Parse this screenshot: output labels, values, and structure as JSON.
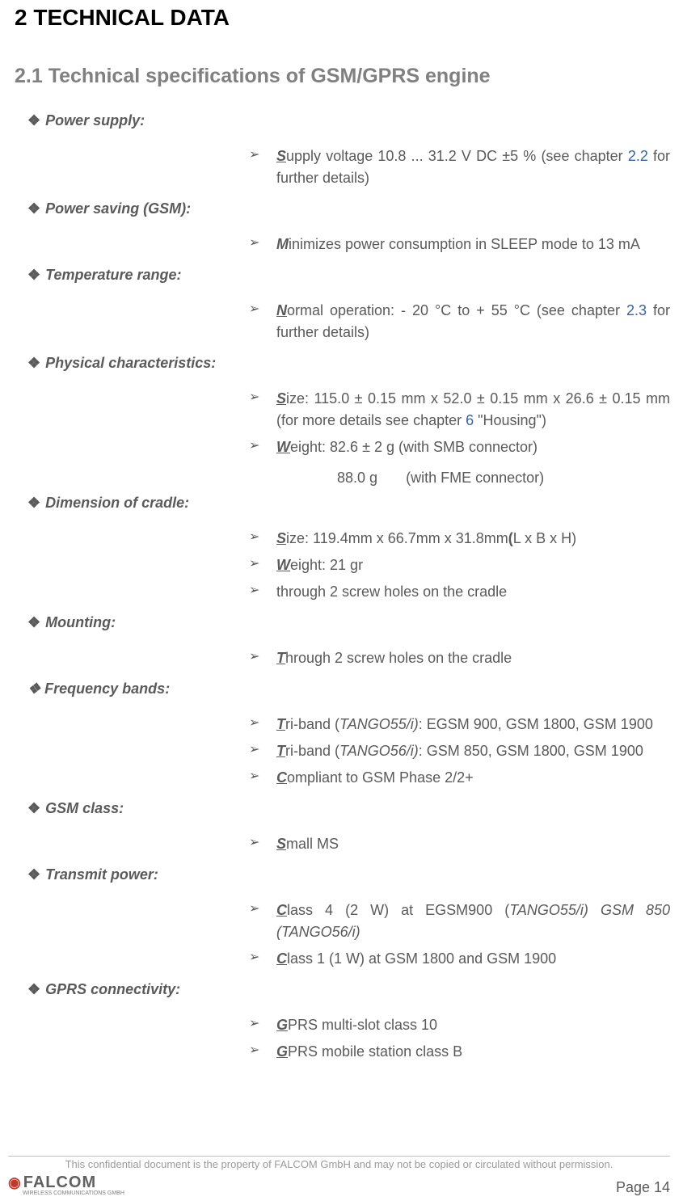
{
  "colors": {
    "text_main": "#5a5a5a",
    "heading": "#000000",
    "subheading": "#808080",
    "link": "#3764a0",
    "footer_gray": "#9a9a9a",
    "border": "#c0c0c0",
    "logo_accent": "#c0392b",
    "background": "#ffffff"
  },
  "typography": {
    "h1_fontsize": 28,
    "h2_fontsize": 25,
    "body_fontsize": 18,
    "footer_fontsize": 13
  },
  "heading_main": "2   TECHNICAL DATA",
  "heading_sub": "2.1  Technical specifications of GSM/GPRS engine",
  "sections": {
    "power_supply": {
      "label": "Power supply:",
      "items": [
        {
          "first": "S",
          "rest": "upply voltage 10.8 ... 31.2 V DC ±5 % (see chapter ",
          "link": "2.2",
          "tail": " for further details)"
        }
      ]
    },
    "power_saving": {
      "label": "Power saving (GSM):",
      "items": [
        {
          "first_nou": "M",
          "rest": "inimizes power consumption in SLEEP mode to 13 mA"
        }
      ]
    },
    "temperature": {
      "label": "Temperature range:",
      "items": [
        {
          "first": "N",
          "rest": "ormal operation: - 20 °C to + 55 °C (see chapter ",
          "link": "2.3",
          "tail": " for further details)"
        }
      ]
    },
    "physical": {
      "label": "Physical characteristics:",
      "items": [
        {
          "first": "S",
          "rest": "ize: 115.0 ± 0.15 mm x 52.0 ± 0.15 mm x 26.6 ± 0.15 mm (for more details see chapter ",
          "link": "6",
          "tail": " \"Housing\")"
        },
        {
          "first": "W",
          "rest": "eight:  82.6 ± 2 g (with SMB connector)"
        }
      ],
      "sub_line": {
        "value": "88.0 g",
        "note": "(with FME connector)"
      }
    },
    "cradle": {
      "label": "Dimension of cradle:",
      "items": [
        {
          "first": "S",
          "rest": "ize: 119.4mm x 66.7mm x 31.8mm",
          "bold": "(",
          "tail2": "L x B x H)"
        },
        {
          "first": "W",
          "rest": "eight:  21 gr"
        },
        {
          "plain": "through 2 screw holes on the cradle"
        }
      ]
    },
    "mounting": {
      "label": "Mounting:",
      "items": [
        {
          "first": "T",
          "rest": "hrough 2 screw holes on the cradle"
        }
      ]
    },
    "frequency": {
      "label": "Frequency bands",
      "label_colon": ":",
      "items": [
        {
          "first": "T",
          "rest": "ri-band (",
          "ital": "TANGO55/i)",
          "tail": ": EGSM 900, GSM 1800, GSM 1900"
        },
        {
          "first": "T",
          "rest": "ri-band (",
          "ital": "TANGO56/i)",
          "tail": ": GSM 850, GSM 1800, GSM 1900"
        },
        {
          "first": "C",
          "rest": "ompliant to GSM Phase 2/2+"
        }
      ]
    },
    "gsm_class": {
      "label": "GSM class:",
      "items": [
        {
          "first": "S",
          "rest": "mall MS"
        }
      ]
    },
    "transmit": {
      "label": "Transmit power:",
      "items": [
        {
          "first": "C",
          "rest": "lass 4 (2 W) at EGSM900 (",
          "ital": "TANGO55/i) GSM 850 (TANGO56/i)"
        },
        {
          "first": "C",
          "rest": "lass 1 (1 W) at GSM 1800 and GSM 1900"
        }
      ]
    },
    "gprs": {
      "label": "GPRS connectivity:",
      "items": [
        {
          "first": "G",
          "rest": "PRS multi-slot class 10"
        },
        {
          "first": "G",
          "rest": "PRS mobile station class B"
        }
      ]
    }
  },
  "footer": {
    "confidential": "This confidential document is the property of FALCOM GmbH and may not be copied or circulated without permission.",
    "logo_text": "FALCOM",
    "logo_sub": "WIRELESS COMMUNICATIONS GMBH",
    "page": "Page 14"
  }
}
